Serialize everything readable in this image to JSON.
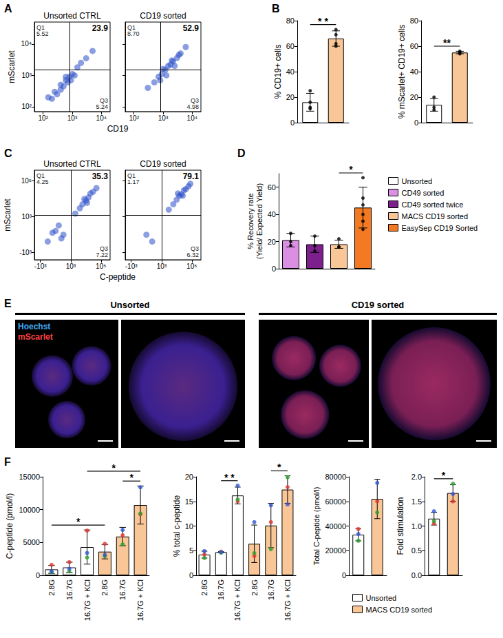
{
  "chart_data": [
    {
      "panel": "A",
      "type": "scatter",
      "title": "Unsorted CTRL",
      "xlabel": "CD19",
      "ylabel": "mScarlet",
      "log": true,
      "grid": false,
      "color": "#2b4fc8",
      "marker": "circle",
      "xlim": [
        50,
        20000
      ],
      "ylim": [
        70,
        50000
      ],
      "xticks": [
        {
          "value": 100,
          "label": "10²"
        },
        {
          "value": 1000,
          "label": "10³"
        },
        {
          "value": 10000,
          "label": "10⁴"
        }
      ],
      "yticks": [
        {
          "value": 100,
          "label": "10²"
        },
        {
          "value": 1000,
          "label": "10³"
        },
        {
          "value": 10000,
          "label": "10⁴"
        }
      ],
      "gate": {
        "x": 800,
        "y": 1500
      },
      "quadrant_labels": {
        "top_left": {
          "label": "Q1",
          "value": 5.52
        },
        "top_right": 23.9,
        "bottom_right": {
          "label": "Q3",
          "value": 5.24
        }
      },
      "x": [
        150,
        250,
        300,
        400,
        500,
        600,
        700,
        800,
        1000,
        1200,
        1500,
        2000,
        3000,
        5000,
        400,
        900,
        600,
        200
      ],
      "y": [
        200,
        300,
        250,
        500,
        450,
        700,
        600,
        900,
        1100,
        1000,
        1800,
        2500,
        3500,
        6000,
        350,
        700,
        900,
        180
      ]
    },
    {
      "type": "scatter",
      "title": "CD19 sorted",
      "log": true,
      "grid": false,
      "tick_labels": "x",
      "color": "#2b4fc8",
      "marker": "circle",
      "xlim": [
        50,
        20000
      ],
      "ylim": [
        70,
        50000
      ],
      "xticks": [
        {
          "value": 100,
          "label": "10²"
        },
        {
          "value": 1000,
          "label": "10³"
        },
        {
          "value": 10000,
          "label": "10⁴"
        }
      ],
      "yticks": [
        {
          "value": 100,
          "label": "10²"
        },
        {
          "value": 1000,
          "label": "10³"
        },
        {
          "value": 10000,
          "label": "10⁴"
        }
      ],
      "gate": {
        "x": 800,
        "y": 1500
      },
      "quadrant_labels": {
        "top_left": {
          "label": "Q1",
          "value": {
            "value": 8.7,
            "label": "8.70"
          }
        },
        "top_right": 52.9,
        "bottom_right": {
          "label": "Q3",
          "value": 4.98
        }
      },
      "x": [
        300,
        500,
        700,
        900,
        1200,
        1500,
        1800,
        2200,
        3000,
        4000,
        6000,
        1000,
        2500,
        1300,
        800,
        3500,
        2000
      ],
      "y": [
        400,
        600,
        900,
        1100,
        1500,
        2000,
        2200,
        2800,
        3600,
        5000,
        8000,
        1600,
        2000,
        1000,
        700,
        4500,
        3000
      ]
    },
    {
      "panel": "B",
      "type": "bar",
      "ylabel": "% CD19+ cells",
      "grid": false,
      "tick_labels": "y",
      "categories": [
        null,
        null
      ],
      "values": [
        16,
        66
      ],
      "colors": [
        "#ffffff",
        "#f9c797"
      ],
      "errors": [
        7,
        6
      ],
      "points": [
        [
          25,
          16,
          12,
          11
        ],
        [
          73,
          69,
          62,
          60
        ]
      ],
      "ylim": [
        0,
        80
      ],
      "yticks": [
        0,
        20,
        40,
        60,
        80
      ],
      "significance": [
        {
          "from": 0,
          "to": 1,
          "label": "* *"
        }
      ]
    },
    {
      "type": "bar",
      "ylabel": "% mScarlet+ CD19+ cells",
      "grid": false,
      "tick_labels": "y",
      "categories": [
        null,
        null
      ],
      "values": [
        14,
        55
      ],
      "colors": [
        "#ffffff",
        "#f9c797"
      ],
      "errors": [
        5,
        1
      ],
      "points": [
        [
          20,
          12,
          10
        ],
        [
          56,
          55,
          54
        ]
      ],
      "ylim": [
        0,
        80
      ],
      "yticks": [
        0,
        20,
        40,
        60,
        80
      ],
      "significance": [
        {
          "from": 0,
          "to": 1,
          "label": "**"
        }
      ]
    },
    {
      "panel": "C",
      "type": "scatter",
      "title": "Unsorted CTRL",
      "xlabel": "C-peptide",
      "ylabel": "mScarlet",
      "log": true,
      "grid": false,
      "color": "#2b4fc8",
      "marker": "circle",
      "xlim": [
        -2500,
        400000
      ],
      "ylim": [
        -2500,
        400000
      ],
      "xticks": [
        {
          "value": -1000,
          "label": "-10³"
        },
        {
          "value": 1000,
          "label": "10³"
        },
        {
          "value": 100000,
          "label": "10⁵"
        }
      ],
      "yticks": [
        {
          "value": -1000,
          "label": "-10³"
        },
        {
          "value": 1000,
          "label": "10³"
        },
        {
          "value": 100000,
          "label": "10⁵"
        }
      ],
      "gate": {
        "x": 1000,
        "y": 1200
      },
      "quadrant_labels": {
        "top_left": {
          "label": "Q1",
          "value": 4.25
        },
        "top_right": 35.3,
        "bottom_right": {
          "label": "Q3",
          "value": 7.22
        }
      },
      "x": [
        -300,
        0,
        200,
        -100,
        100,
        300,
        2000,
        4000,
        6000,
        10000,
        15000,
        20000,
        30000,
        50000,
        8000,
        12000
      ],
      "y": [
        -200,
        100,
        -100,
        50,
        300,
        0,
        1500,
        3000,
        5000,
        8000,
        12000,
        20000,
        25000,
        40000,
        10000,
        6000
      ]
    },
    {
      "type": "scatter",
      "title": "CD19 sorted",
      "log": true,
      "grid": false,
      "tick_labels": "x",
      "color": "#2b4fc8",
      "marker": "circle",
      "xlim": [
        -2500,
        400000
      ],
      "ylim": [
        -2500,
        400000
      ],
      "xticks": [
        {
          "value": -1000,
          "label": "-10³"
        },
        {
          "value": 1000,
          "label": "10³"
        },
        {
          "value": 100000,
          "label": "10⁵"
        }
      ],
      "yticks": [
        {
          "value": -1000,
          "label": "-10³"
        },
        {
          "value": 1000,
          "label": "10³"
        },
        {
          "value": 100000,
          "label": "10⁵"
        }
      ],
      "gate": {
        "x": 1000,
        "y": 1200
      },
      "quadrant_labels": {
        "top_left": {
          "label": "Q1",
          "value": 1.17
        },
        "top_right": 79.1,
        "bottom_right": {
          "label": "Q3",
          "value": 6.32
        }
      },
      "x": [
        0,
        200,
        3000,
        6000,
        10000,
        15000,
        20000,
        30000,
        40000,
        60000,
        80000,
        12000,
        25000
      ],
      "y": [
        0,
        -200,
        2500,
        5000,
        9000,
        15000,
        18000,
        30000,
        35000,
        50000,
        70000,
        20000,
        15000
      ]
    },
    {
      "panel": "D",
      "type": "bar",
      "ylabel": [
        "% Recovery rate",
        "(Yield/ Expected Yield)"
      ],
      "grid": false,
      "tick_labels": "y",
      "legend": "right",
      "categories": [
        null,
        null,
        null,
        null
      ],
      "series": [
        {
          "name": "Unsorted",
          "color": "#ffffff",
          "values": [
            null,
            null,
            null,
            null
          ]
        },
        {
          "name": "CD49 sorted",
          "color": "#da8fe3",
          "values": [
            21,
            null,
            null,
            null
          ]
        },
        {
          "name": "CD49 sorted twice",
          "color": "#7d1f8c",
          "values": [
            null,
            18,
            null,
            null
          ]
        },
        {
          "name": "MACS CD19 sorted",
          "color": "#f9c797",
          "values": [
            null,
            null,
            18,
            null
          ]
        },
        {
          "name": "EasySep CD19 Sorted",
          "color": "#f37a22",
          "values": [
            null,
            null,
            null,
            45
          ]
        }
      ],
      "errors": [
        5,
        6,
        3,
        15
      ],
      "points": [
        [
          26,
          20,
          17
        ],
        [
          24,
          17,
          13
        ],
        [
          22,
          16,
          16
        ],
        [
          67,
          52,
          47,
          40,
          35,
          29
        ]
      ],
      "ylim": [
        0,
        70
      ],
      "yticks": [
        0,
        20,
        40,
        60
      ],
      "significance": [
        {
          "from": 2,
          "to": 3,
          "label": "*"
        }
      ]
    },
    {
      "panel": "F",
      "type": "bar",
      "ylabel": "C-peptide (pmol/l)",
      "grid": false,
      "categories": [
        "2.8G",
        "16.7G",
        "16.7G + KCl",
        "2.8G",
        "16.7G",
        "16.7G + KCl"
      ],
      "values": [
        900,
        1200,
        4300,
        3600,
        5900,
        10700
      ],
      "colors": [
        "#ffffff",
        "#ffffff",
        "#ffffff",
        "#f9c797",
        "#f9c797",
        "#f9c797"
      ],
      "errors": [
        600,
        800,
        2600,
        1100,
        1400,
        2900
      ],
      "replicates": [
        {
          "color": "#e3342f",
          "values": [
            1600,
            2000,
            6800,
            4800,
            6100,
            9300
          ]
        },
        {
          "color": "#2ca02c",
          "values": [
            500,
            600,
            2700,
            2900,
            4700,
            9400
          ]
        },
        {
          "color": "#2f55d4",
          "values": [
            600,
            1000,
            3400,
            3100,
            6900,
            13400
          ]
        }
      ],
      "ylim": [
        0,
        15000
      ],
      "yticks": [
        0,
        5000,
        10000,
        15000
      ],
      "significance": [
        {
          "from": 0,
          "to": 3,
          "label": "*"
        },
        {
          "from": 2,
          "to": 5,
          "label": "*"
        },
        {
          "from": 4,
          "to": 5,
          "label": "*"
        }
      ]
    },
    {
      "type": "bar",
      "ylabel": "% total c-peptide",
      "grid": false,
      "categories": [
        "2.8G",
        "16.7G",
        "16.7G + KCl",
        "2.8G",
        "16.7G",
        "16.7G + KCl"
      ],
      "values": [
        4.2,
        4.7,
        16.2,
        6.4,
        10.1,
        17.4
      ],
      "colors": [
        "#ffffff",
        "#ffffff",
        "#ffffff",
        "#f9c797",
        "#f9c797",
        "#f9c797"
      ],
      "errors": [
        0.7,
        0.1,
        1.7,
        3.8,
        4.5,
        2.8
      ],
      "replicates": [
        {
          "color": "#e3342f",
          "values": [
            4.2,
            4.8,
            15.0,
            3.9,
            10.8,
            17.9
          ]
        },
        {
          "color": "#2ca02c",
          "values": [
            3.5,
            4.6,
            15.4,
            4.5,
            5.3,
            19.9
          ]
        },
        {
          "color": "#2f55d4",
          "values": [
            4.9,
            4.7,
            18.2,
            10.8,
            14.2,
            14.4
          ]
        }
      ],
      "ylim": [
        0,
        20
      ],
      "yticks": [
        0,
        5,
        10,
        15,
        20
      ],
      "significance": [
        {
          "from": 1,
          "to": 2,
          "label": "* *"
        },
        {
          "from": 4,
          "to": 5,
          "label": "*"
        }
      ]
    },
    {
      "type": "bar",
      "ylabel": "Total C-peptide (pmol/l)",
      "grid": false,
      "tick_labels": "y",
      "legend": "bottom",
      "categories": [
        null,
        null
      ],
      "series": [
        {
          "name": "Unsorted",
          "color": "#ffffff",
          "values": [
            33000,
            null
          ]
        },
        {
          "name": "MACS CD19 sorted",
          "color": "#f9c797",
          "values": [
            null,
            62000
          ]
        }
      ],
      "errors": [
        5000,
        16000
      ],
      "replicates": [
        {
          "color": "#e3342f",
          "values": [
            37500,
            60000
          ]
        },
        {
          "color": "#2ca02c",
          "values": [
            28000,
            51000
          ]
        },
        {
          "color": "#2f55d4",
          "values": [
            33500,
            75000
          ]
        }
      ],
      "ylim": [
        0,
        80000
      ],
      "yticks": [
        0,
        20000,
        40000,
        60000,
        80000
      ]
    },
    {
      "type": "bar",
      "ylabel": "Fold stimulation",
      "grid": false,
      "tick_labels": "y",
      "categories": [
        null,
        null
      ],
      "values": [
        1.15,
        1.67
      ],
      "colors": [
        "#ffffff",
        "#f9c797"
      ],
      "errors": [
        0.13,
        0.17
      ],
      "replicates": [
        {
          "color": "#e3342f",
          "values": [
            1.05,
            1.5
          ]
        },
        {
          "color": "#2ca02c",
          "values": [
            1.1,
            1.86
          ]
        },
        {
          "color": "#2f55d4",
          "values": [
            1.3,
            1.65
          ]
        }
      ],
      "ylim": [
        0,
        2
      ],
      "yticks": [
        {
          "value": 0,
          "label": "0.0"
        },
        0.5,
        {
          "value": 1,
          "label": "1.0"
        },
        1.5,
        {
          "value": 2,
          "label": "2.0"
        }
      ],
      "significance": [
        {
          "from": 0,
          "to": 1,
          "label": "*"
        }
      ]
    }
  ],
  "micrographs": {
    "panel": "E",
    "groups": [
      "Unsorted",
      "CD19 sorted"
    ],
    "channels": [
      {
        "name": "Hoechst",
        "color": "#3fa9f5"
      },
      {
        "name": "mScarlet",
        "color": "#ff4040"
      }
    ]
  }
}
